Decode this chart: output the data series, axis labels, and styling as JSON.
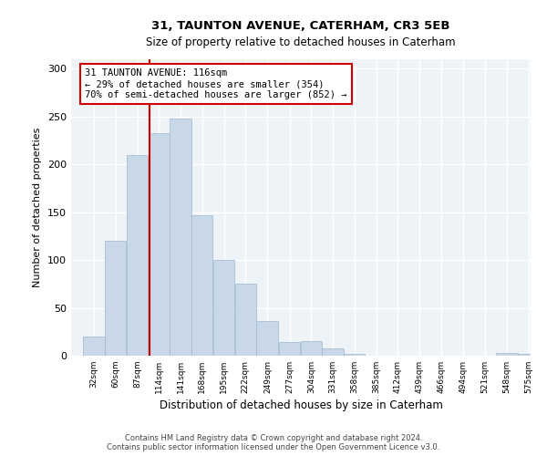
{
  "title1": "31, TAUNTON AVENUE, CATERHAM, CR3 5EB",
  "title2": "Size of property relative to detached houses in Caterham",
  "xlabel": "Distribution of detached houses by size in Caterham",
  "ylabel": "Number of detached properties",
  "bin_edges": [
    32,
    60,
    87,
    114,
    141,
    168,
    195,
    222,
    249,
    277,
    304,
    331,
    358,
    385,
    412,
    439,
    466,
    494,
    521,
    548,
    575
  ],
  "bar_heights": [
    20,
    120,
    210,
    233,
    248,
    147,
    100,
    75,
    36,
    14,
    15,
    8,
    2,
    0,
    0,
    0,
    0,
    0,
    0,
    3,
    2
  ],
  "bar_color": "#c8d8e8",
  "bar_edge_color": "#a0b8d0",
  "property_size": 116,
  "red_line_color": "#cc0000",
  "annotation_text": "31 TAUNTON AVENUE: 116sqm\n← 29% of detached houses are smaller (354)\n70% of semi-detached houses are larger (852) →",
  "annotation_box_color": "white",
  "annotation_box_edge": "#cc0000",
  "ylim": [
    0,
    310
  ],
  "yticks": [
    0,
    50,
    100,
    150,
    200,
    250,
    300
  ],
  "bg_color": "#eef3f8",
  "grid_color": "white",
  "footer_line1": "Contains HM Land Registry data © Crown copyright and database right 2024.",
  "footer_line2": "Contains public sector information licensed under the Open Government Licence v3.0."
}
